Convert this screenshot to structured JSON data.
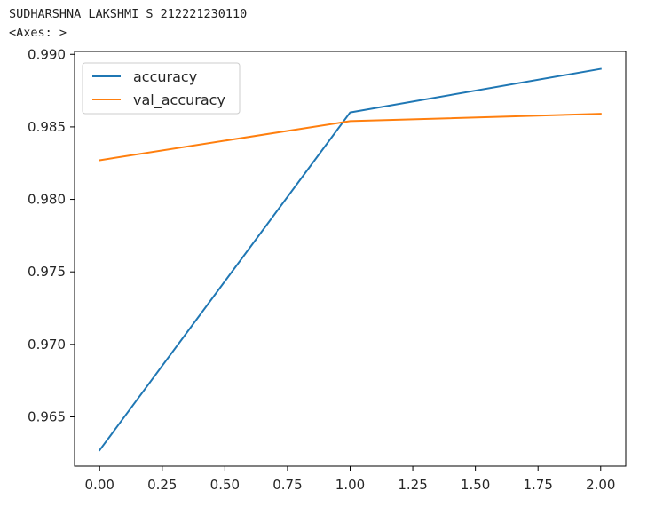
{
  "output": {
    "line1": "SUDHARSHNA LAKSHMI S 212221230110",
    "line2": "<Axes: >"
  },
  "chart_data": {
    "type": "line",
    "title": "",
    "xlabel": "",
    "ylabel": "",
    "x": [
      0,
      1,
      2
    ],
    "series": [
      {
        "name": "accuracy",
        "values": [
          0.9627,
          0.986,
          0.989
        ],
        "color": "#1f77b4"
      },
      {
        "name": "val_accuracy",
        "values": [
          0.9827,
          0.9854,
          0.9859
        ],
        "color": "#ff7f0e"
      }
    ],
    "xlim": [
      -0.1,
      2.1
    ],
    "ylim": [
      0.9616,
      0.9902
    ],
    "xticks": [
      0.0,
      0.25,
      0.5,
      0.75,
      1.0,
      1.25,
      1.5,
      1.75,
      2.0
    ],
    "xtick_labels": [
      "0.00",
      "0.25",
      "0.50",
      "0.75",
      "1.00",
      "1.25",
      "1.50",
      "1.75",
      "2.00"
    ],
    "yticks": [
      0.965,
      0.97,
      0.975,
      0.98,
      0.985,
      0.99
    ],
    "ytick_labels": [
      "0.965",
      "0.970",
      "0.975",
      "0.980",
      "0.985",
      "0.990"
    ],
    "grid": false,
    "legend": "upper-left"
  }
}
